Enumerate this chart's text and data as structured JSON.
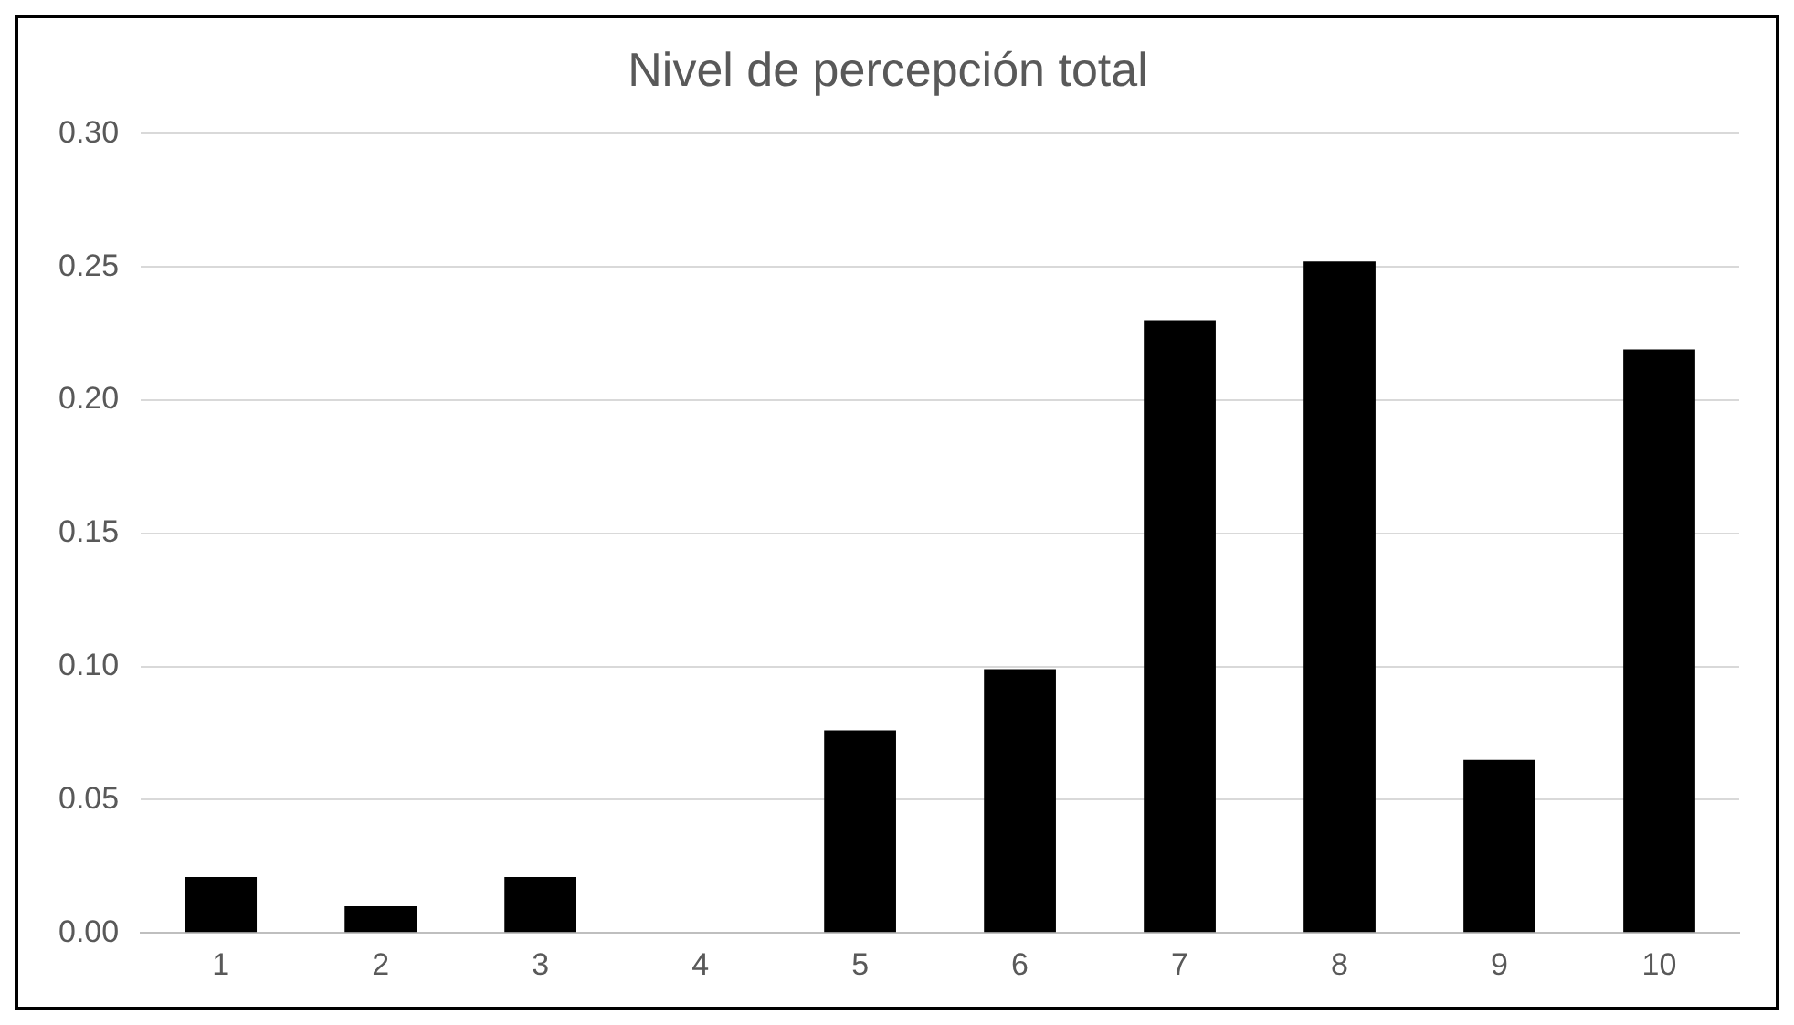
{
  "chart_data": {
    "type": "bar",
    "title": "Nivel de percepción total",
    "categories": [
      "1",
      "2",
      "3",
      "4",
      "5",
      "6",
      "7",
      "8",
      "9",
      "10"
    ],
    "values": [
      0.021,
      0.01,
      0.021,
      0,
      0.076,
      0.099,
      0.23,
      0.252,
      0.065,
      0.219
    ],
    "color": "#000000",
    "ylim": [
      0,
      0.3
    ],
    "yticks": [
      {
        "value": 0,
        "label": "0.00"
      },
      {
        "value": 0.05,
        "label": "0.05"
      },
      {
        "value": 0.1,
        "label": "0.10"
      },
      {
        "value": 0.15,
        "label": "0.15"
      },
      {
        "value": 0.2,
        "label": "0.20"
      },
      {
        "value": 0.25,
        "label": "0.25"
      },
      {
        "value": 0.3,
        "label": "0.30"
      }
    ],
    "grid": "y",
    "legend": false
  }
}
